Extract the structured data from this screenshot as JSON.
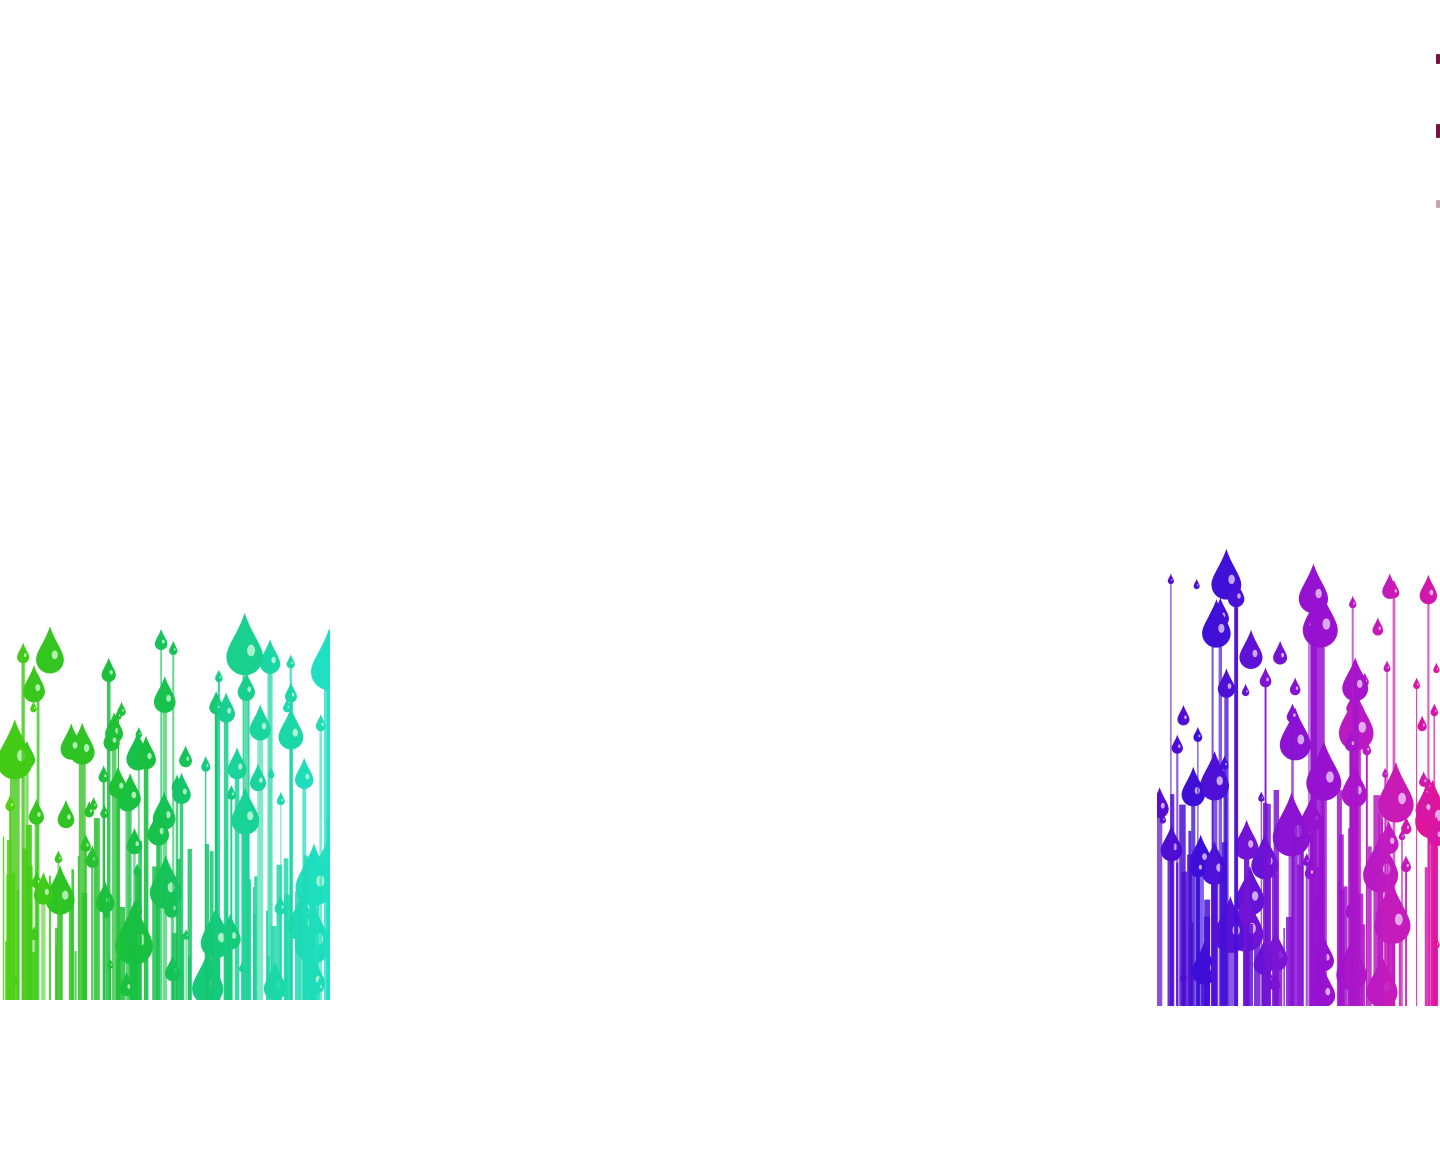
{
  "background_color": "#ffffff",
  "panels": [
    {
      "id": "green",
      "palette": [
        "#52d10f",
        "#2fc324",
        "#19c040",
        "#14c56a",
        "#1bd6a3",
        "#20e0c4"
      ],
      "highlight": "#d9ffe0"
    },
    {
      "id": "purple",
      "palette": [
        "#5a0ccf",
        "#3b0fd8",
        "#7a14d4",
        "#9a12cf",
        "#c01cc0",
        "#e0149a"
      ],
      "highlight": "#f2d9ff"
    }
  ],
  "edge_fragment_color": "#7a1240"
}
